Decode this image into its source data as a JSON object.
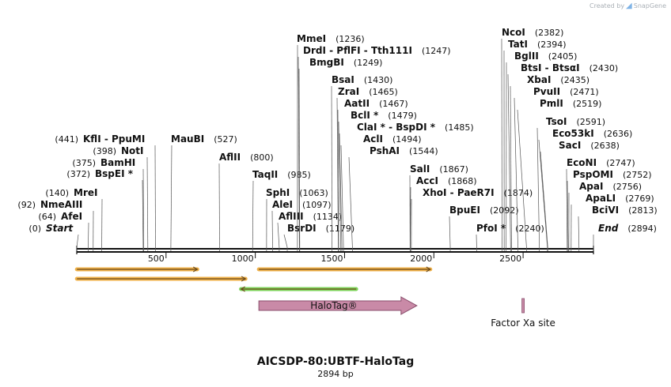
{
  "credit": {
    "prefix": "Created by",
    "brand": "SnapGene"
  },
  "map": {
    "title": "AICSDP-80:UBTF-HaloTag",
    "length_label": "2894 bp",
    "length_bp": 2894,
    "ticks": [
      "500",
      "1000",
      "1500",
      "2000",
      "2500"
    ],
    "colors": {
      "orf_stroke": "#f0b24a",
      "orf_arrow": "#6b4a1a",
      "primer_green": "#7ed35a",
      "halotag_fill": "#c98aa7",
      "halotag_stroke": "#8a4f6d"
    },
    "features": [
      {
        "id": "halotag",
        "label": "HaloTag®",
        "start": 1020,
        "end": 1905,
        "strand": "+",
        "type": "cds"
      },
      {
        "id": "factor-xa",
        "label": "Factor Xa site",
        "start": 2494,
        "end": 2506,
        "strand": "+",
        "type": "site"
      }
    ],
    "orfs": [
      {
        "start": 1,
        "end": 675,
        "strand": "+"
      },
      {
        "start": 1,
        "end": 945,
        "strand": "+"
      },
      {
        "start": 1020,
        "end": 1980,
        "strand": "+"
      },
      {
        "start": 920,
        "end": 1565,
        "strand": "-"
      }
    ],
    "left_sites": [
      {
        "name": "Start",
        "pos": "(0)",
        "bp": 0,
        "italic": true
      },
      {
        "name": "AfeI",
        "pos": "(64)",
        "bp": 64
      },
      {
        "name": "NmeAIII",
        "pos": "(92)",
        "bp": 92
      },
      {
        "name": "MreI",
        "pos": "(140)",
        "bp": 140
      },
      {
        "name": "BspEI *",
        "pos": "(372)",
        "bp": 372
      },
      {
        "name": "BamHI",
        "pos": "(375)",
        "bp": 375
      },
      {
        "name": "NotI",
        "pos": "(398)",
        "bp": 398
      },
      {
        "name": "KflI  -  PpuMI",
        "pos": "(441)",
        "bp": 441
      }
    ],
    "right_sites": [
      {
        "name": "MauBI",
        "pos": "(527)",
        "bp": 527
      },
      {
        "name": "AflII",
        "pos": "(800)",
        "bp": 800
      },
      {
        "name": "TaqII",
        "pos": "(985)",
        "bp": 985
      },
      {
        "name": "SphI",
        "pos": "(1063)",
        "bp": 1063
      },
      {
        "name": "AleI",
        "pos": "(1097)",
        "bp": 1097
      },
      {
        "name": "AflIII",
        "pos": "(1134)",
        "bp": 1134
      },
      {
        "name": "BsrDI",
        "pos": "(1179)",
        "bp": 1179
      },
      {
        "name": "MmeI",
        "pos": "(1236)",
        "bp": 1236
      },
      {
        "name": "DrdI  -  PflFI  -  Tth111I",
        "pos": "(1247)",
        "bp": 1247
      },
      {
        "name": "BmgBI",
        "pos": "(1249)",
        "bp": 1249
      },
      {
        "name": "BsaI",
        "pos": "(1430)",
        "bp": 1430
      },
      {
        "name": "ZraI",
        "pos": "(1465)",
        "bp": 1465
      },
      {
        "name": "AatII",
        "pos": "(1467)",
        "bp": 1467
      },
      {
        "name": "BclI *",
        "pos": "(1479)",
        "bp": 1479
      },
      {
        "name": "ClaI *  -  BspDI *",
        "pos": "(1485)",
        "bp": 1485
      },
      {
        "name": "AclI",
        "pos": "(1494)",
        "bp": 1494
      },
      {
        "name": "PshAI",
        "pos": "(1544)",
        "bp": 1544
      },
      {
        "name": "SalI",
        "pos": "(1867)",
        "bp": 1867
      },
      {
        "name": "AccI",
        "pos": "(1868)",
        "bp": 1868
      },
      {
        "name": "XhoI  -  PaeR7I",
        "pos": "(1874)",
        "bp": 1874
      },
      {
        "name": "BpuEI",
        "pos": "(2092)",
        "bp": 2092
      },
      {
        "name": "PfoI *",
        "pos": "(2240)",
        "bp": 2240
      },
      {
        "name": "NcoI",
        "pos": "(2382)",
        "bp": 2382
      },
      {
        "name": "TatI",
        "pos": "(2394)",
        "bp": 2394
      },
      {
        "name": "BglII",
        "pos": "(2405)",
        "bp": 2405
      },
      {
        "name": "BtsI  -  BtsαI",
        "pos": "(2430)",
        "bp": 2430
      },
      {
        "name": "XbaI",
        "pos": "(2435)",
        "bp": 2435
      },
      {
        "name": "PvuII",
        "pos": "(2471)",
        "bp": 2471
      },
      {
        "name": "PmlI",
        "pos": "(2519)",
        "bp": 2519
      },
      {
        "name": "TsoI",
        "pos": "(2591)",
        "bp": 2591
      },
      {
        "name": "Eco53kI",
        "pos": "(2636)",
        "bp": 2636
      },
      {
        "name": "SacI",
        "pos": "(2638)",
        "bp": 2638
      },
      {
        "name": "EcoNI",
        "pos": "(2747)",
        "bp": 2747
      },
      {
        "name": "PspOMI",
        "pos": "(2752)",
        "bp": 2752
      },
      {
        "name": "ApaI",
        "pos": "(2756)",
        "bp": 2756
      },
      {
        "name": "ApaLI",
        "pos": "(2769)",
        "bp": 2769
      },
      {
        "name": "BciVI",
        "pos": "(2813)",
        "bp": 2813
      },
      {
        "name": "End",
        "pos": "(2894)",
        "bp": 2894,
        "italic": true
      }
    ]
  }
}
